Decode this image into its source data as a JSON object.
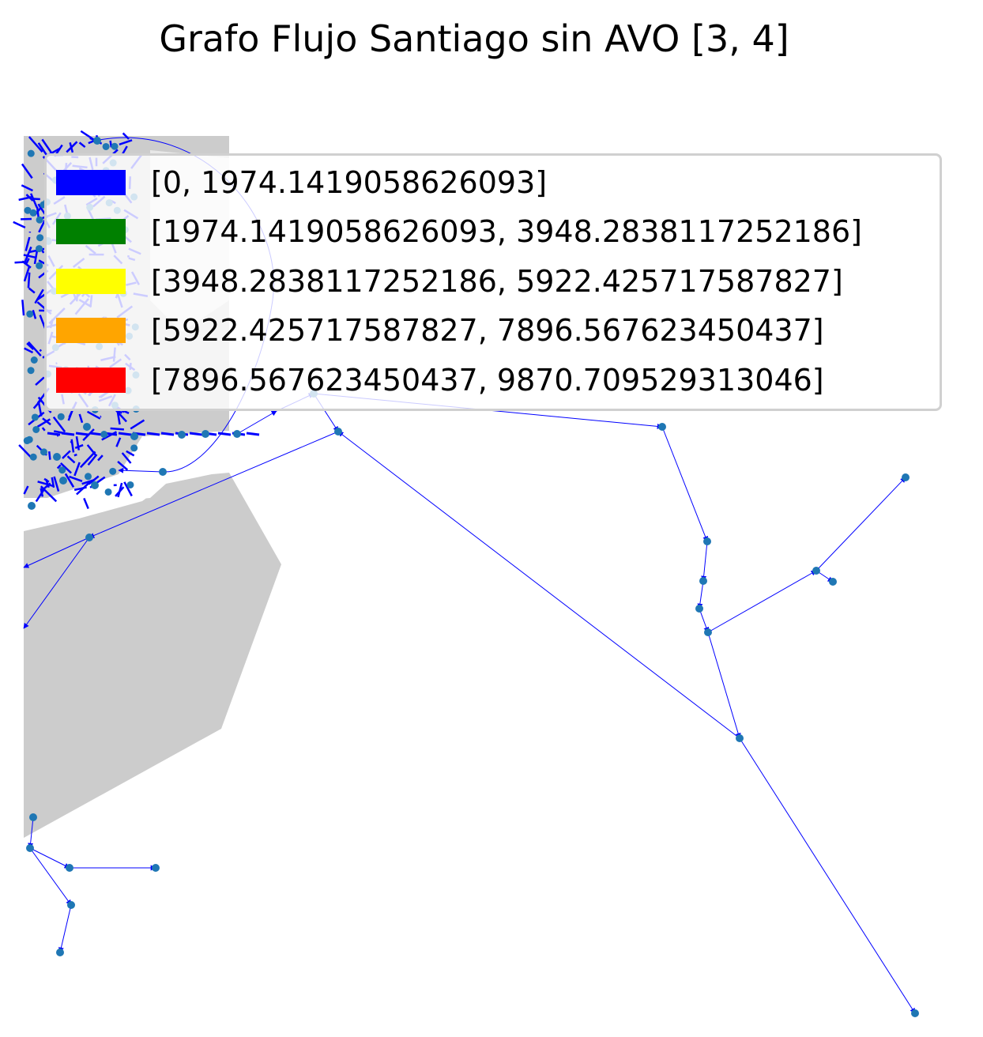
{
  "title": "Grafo Flujo Santiago sin AVO [3, 4]",
  "colors": {
    "land": "#cccccc",
    "edge": "#0000ff",
    "node": "#1f77b4"
  },
  "legend": [
    {
      "label": "[0, 1974.1419058626093]",
      "color": "#0000ff"
    },
    {
      "label": "[1974.1419058626093, 3948.2838117252186]",
      "color": "#008000"
    },
    {
      "label": "[3948.2838117252186, 5922.425717587827]",
      "color": "#ffff00"
    },
    {
      "label": "[5922.425717587827, 7896.567623450437]",
      "color": "#ffa500"
    },
    {
      "label": "[7896.567623450437, 9870.709529313046]",
      "color": "#ff0000"
    }
  ]
}
